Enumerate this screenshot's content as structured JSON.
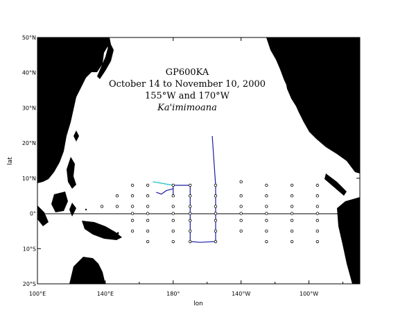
{
  "title_lines": [
    "GP600KA",
    "October 14 to November 10, 2000",
    "155°W and 170°W"
  ],
  "vessel": "Ka'imimoana",
  "axes": {
    "xlabel": "lon",
    "ylabel": "lat",
    "lon_range": [
      100,
      290
    ],
    "lat_range": [
      -20,
      50
    ],
    "x_ticks": [
      {
        "lon": 100,
        "label": "100°E"
      },
      {
        "lon": 140,
        "label": "140°E"
      },
      {
        "lon": 180,
        "label": "180°"
      },
      {
        "lon": 220,
        "label": "140°W"
      },
      {
        "lon": 260,
        "label": "100°W"
      }
    ],
    "y_ticks": [
      {
        "lat": 50,
        "label": "50°N"
      },
      {
        "lat": 40,
        "label": "40°N"
      },
      {
        "lat": 30,
        "label": "30°N"
      },
      {
        "lat": 20,
        "label": "20°N"
      },
      {
        "lat": 10,
        "label": "10°N"
      },
      {
        "lat": 0,
        "label": "0°"
      },
      {
        "lat": -10,
        "label": "10°S"
      },
      {
        "lat": -20,
        "label": "20°S"
      }
    ]
  },
  "colors": {
    "land": "#000000",
    "cruise_track": "#1a1aa0",
    "transit_track": "#20c0c0",
    "equator": "#000000"
  },
  "chart_data": {
    "type": "scatter",
    "moorings": [
      [
        138,
        2
      ],
      [
        147,
        5
      ],
      [
        147,
        2
      ],
      [
        156,
        8
      ],
      [
        156,
        5
      ],
      [
        156,
        2
      ],
      [
        156,
        0
      ],
      [
        156,
        -2
      ],
      [
        156,
        -5
      ],
      [
        165,
        8
      ],
      [
        165,
        5
      ],
      [
        165,
        2
      ],
      [
        165,
        0
      ],
      [
        165,
        -2
      ],
      [
        165,
        -5
      ],
      [
        165,
        -8
      ],
      [
        180,
        8
      ],
      [
        180,
        5
      ],
      [
        180,
        2
      ],
      [
        180,
        0
      ],
      [
        180,
        -2
      ],
      [
        180,
        -5
      ],
      [
        180,
        -8
      ],
      [
        190,
        8
      ],
      [
        190,
        5
      ],
      [
        190,
        2
      ],
      [
        190,
        0
      ],
      [
        190,
        -2
      ],
      [
        190,
        -5
      ],
      [
        190,
        -8
      ],
      [
        205,
        8
      ],
      [
        205,
        5
      ],
      [
        205,
        2
      ],
      [
        205,
        0
      ],
      [
        205,
        -2
      ],
      [
        205,
        -5
      ],
      [
        205,
        -8
      ],
      [
        220,
        9
      ],
      [
        220,
        5
      ],
      [
        220,
        2
      ],
      [
        220,
        0
      ],
      [
        220,
        -2
      ],
      [
        220,
        -5
      ],
      [
        235,
        8
      ],
      [
        235,
        5
      ],
      [
        235,
        2
      ],
      [
        235,
        0
      ],
      [
        235,
        -2
      ],
      [
        235,
        -5
      ],
      [
        235,
        -8
      ],
      [
        250,
        8
      ],
      [
        250,
        5
      ],
      [
        250,
        2
      ],
      [
        250,
        0
      ],
      [
        250,
        -2
      ],
      [
        250,
        -5
      ],
      [
        250,
        -8
      ],
      [
        265,
        8
      ],
      [
        265,
        5
      ],
      [
        265,
        2
      ],
      [
        265,
        0
      ],
      [
        265,
        -2
      ],
      [
        265,
        -5
      ],
      [
        265,
        -8
      ]
    ],
    "cruise_track": [
      [
        180,
        5
      ],
      [
        180,
        8
      ],
      [
        190,
        8
      ],
      [
        190,
        -8
      ],
      [
        196,
        -8.2
      ],
      [
        205,
        -8
      ],
      [
        205,
        8
      ],
      [
        203,
        22
      ]
    ],
    "cruise_track_detour": [
      [
        170,
        6
      ],
      [
        173,
        5.5
      ],
      [
        176,
        6.5
      ],
      [
        180,
        7
      ]
    ],
    "transit_track": [
      [
        168,
        9
      ],
      [
        180,
        8
      ]
    ]
  }
}
